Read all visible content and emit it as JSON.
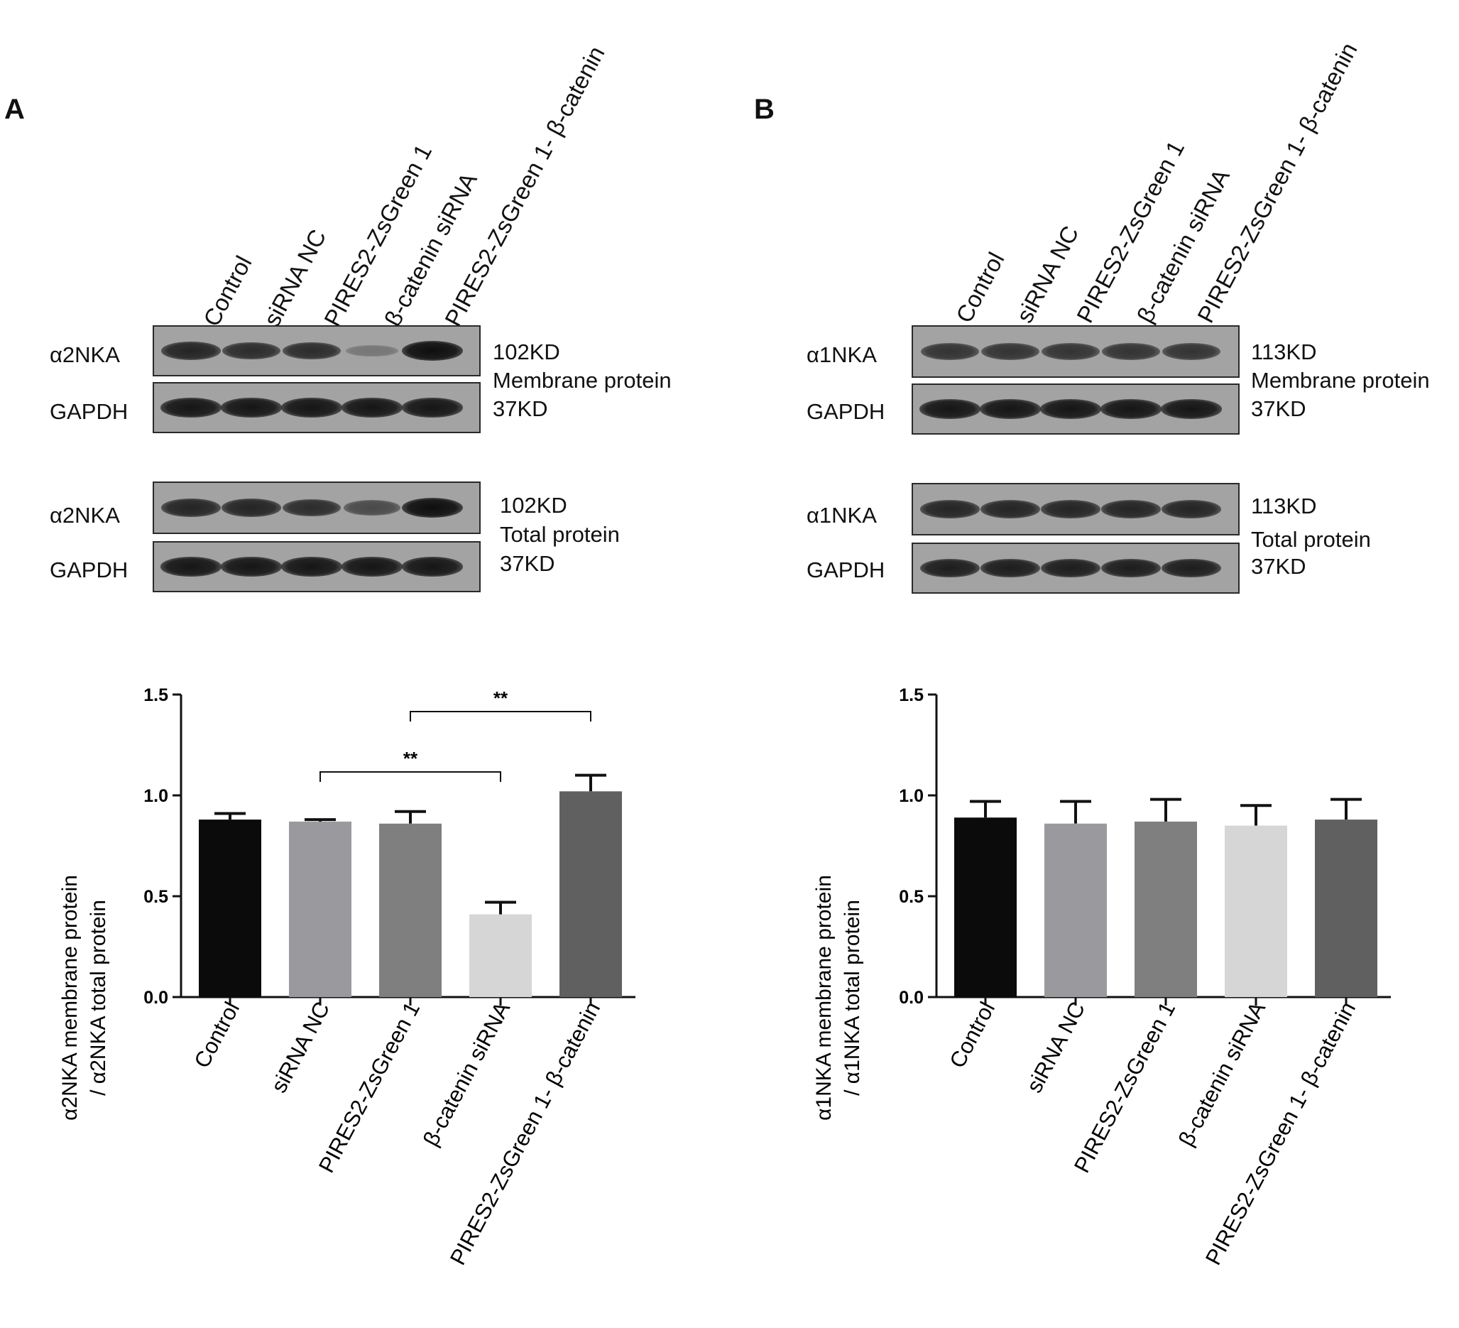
{
  "categories": [
    "Control",
    "siRNA NC",
    "PIRES2-ZsGreen 1",
    "β-catenin siRNA",
    "PIRES2-ZsGreen 1- β-catenin"
  ],
  "panels": [
    {
      "id": "a",
      "letter": "A",
      "membrane": {
        "target": "α2NKA",
        "target_kd": "102KD",
        "loading": "GAPDH",
        "loading_kd": "37KD",
        "label": "Membrane protein",
        "target_intensity": [
          0.85,
          0.8,
          0.8,
          0.3,
          1.0
        ],
        "loading_intensity": [
          0.95,
          0.95,
          0.95,
          0.95,
          0.95
        ]
      },
      "total": {
        "target": "α2NKA",
        "target_kd": "102KD",
        "loading": "GAPDH",
        "loading_kd": "37KD",
        "label": "Total protein",
        "target_intensity": [
          0.85,
          0.85,
          0.8,
          0.6,
          1.0
        ],
        "loading_intensity": [
          0.95,
          0.95,
          0.95,
          0.95,
          0.95
        ]
      },
      "ylabel_line1": "α2NKA membrane protein",
      "ylabel_line2": "/ α2NKA total protein"
    },
    {
      "id": "b",
      "letter": "B",
      "membrane": {
        "target": "α1NKA",
        "target_kd": "113KD",
        "loading": "GAPDH",
        "loading_kd": "37KD",
        "label": "Membrane protein",
        "target_intensity": [
          0.75,
          0.75,
          0.75,
          0.75,
          0.75
        ],
        "loading_intensity": [
          0.95,
          0.95,
          0.95,
          0.95,
          0.95
        ]
      },
      "total": {
        "target": "α1NKA",
        "target_kd": "113KD",
        "loading": "GAPDH",
        "loading_kd": "37KD",
        "label": "Total protein",
        "target_intensity": [
          0.85,
          0.85,
          0.85,
          0.85,
          0.85
        ],
        "loading_intensity": [
          0.9,
          0.9,
          0.9,
          0.9,
          0.9
        ]
      },
      "ylabel_line1": "α1NKA membrane protein",
      "ylabel_line2": "/ α1NKA total protein"
    }
  ],
  "colors": {
    "bars": [
      "#0b0b0b",
      "#9a9a9e",
      "#7f7f7f",
      "#d6d6d6",
      "#5f605f"
    ],
    "axis": "#111111",
    "blot_background": "#a3a3a3"
  },
  "chart_data": [
    {
      "type": "bar",
      "categories": [
        "Control",
        "siRNA NC",
        "PIRES2-ZsGreen 1",
        "β-catenin siRNA",
        "PIRES2-ZsGreen 1- β-catenin"
      ],
      "values": [
        0.88,
        0.87,
        0.86,
        0.41,
        1.02
      ],
      "errors": [
        0.03,
        0.01,
        0.06,
        0.06,
        0.08
      ],
      "ylim": [
        0,
        1.5
      ],
      "yticks": [
        "0.0",
        "0.5",
        "1.0",
        "1.5"
      ],
      "significance": [
        {
          "from": 1,
          "to": 3,
          "label": "**"
        },
        {
          "from": 2,
          "to": 4,
          "label": "**"
        }
      ]
    },
    {
      "type": "bar",
      "categories": [
        "Control",
        "siRNA NC",
        "PIRES2-ZsGreen 1",
        "β-catenin siRNA",
        "PIRES2-ZsGreen 1- β-catenin"
      ],
      "values": [
        0.89,
        0.86,
        0.87,
        0.85,
        0.88
      ],
      "errors": [
        0.08,
        0.11,
        0.11,
        0.1,
        0.1
      ],
      "ylim": [
        0,
        1.5
      ],
      "yticks": [
        "0.0",
        "0.5",
        "1.0",
        "1.5"
      ],
      "significance": []
    }
  ]
}
